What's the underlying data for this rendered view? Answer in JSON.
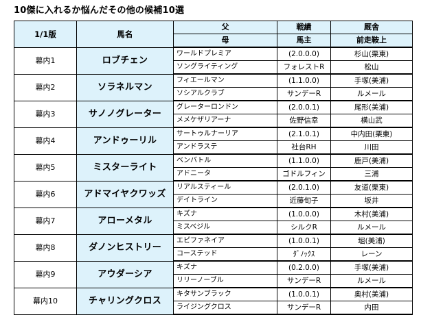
{
  "title": "10傑に入れるか悩んだその他の候補10選",
  "headers": {
    "id": "1/1版",
    "name": "馬名",
    "sire": "父",
    "dam": "母",
    "record": "戦績",
    "owner": "馬主",
    "stable": "厩舎",
    "jockey": "前走鞍上"
  },
  "rows": [
    {
      "id": "幕内1",
      "name": "ロブチェン",
      "sire": "ワールドプレミア",
      "dam": "ソングライティング",
      "record": "(2.0.0.0)",
      "owner": "フォレストR",
      "stable": "杉山(栗東)",
      "jockey": "松山"
    },
    {
      "id": "幕内2",
      "name": "ソラネルマン",
      "sire": "フィエールマン",
      "dam": "ソシアルクラブ",
      "record": "(1.1.0.0)",
      "owner": "サンデーR",
      "stable": "手塚(美浦)",
      "jockey": "ルメール"
    },
    {
      "id": "幕内3",
      "name": "サノノグレーター",
      "sire": "グレーターロンドン",
      "dam": "メメケザリアーナ",
      "record": "(2.0.0.1)",
      "owner": "佐野信幸",
      "stable": "尾形(美浦)",
      "jockey": "横山武"
    },
    {
      "id": "幕内4",
      "name": "アンドゥーリル",
      "sire": "サートゥルナーリア",
      "dam": "アンドラステ",
      "record": "(2.1.0.1)",
      "owner": "社台RH",
      "stable": "中内田(栗東)",
      "jockey": "川田"
    },
    {
      "id": "幕内5",
      "name": "ミスターライト",
      "sire": "ベンバトル",
      "dam": "アドニータ",
      "record": "(1.1.0.0)",
      "owner": "ゴドルフィン",
      "stable": "鹿戸(美浦)",
      "jockey": "三浦"
    },
    {
      "id": "幕内6",
      "name": "アドマイヤクワッズ",
      "sire": "リアルスティール",
      "dam": "デイトライン",
      "record": "(2.0.1.0)",
      "owner": "近藤旬子",
      "stable": "友道(栗東)",
      "jockey": "坂井"
    },
    {
      "id": "幕内7",
      "name": "アローメタル",
      "sire": "キズナ",
      "dam": "ミスベジル",
      "record": "(1.0.0.0)",
      "owner": "シルクR",
      "stable": "木村(美浦)",
      "jockey": "ルメール"
    },
    {
      "id": "幕内8",
      "name": "ダノンヒストリー",
      "sire": "エピファネイア",
      "dam": "コーステッド",
      "record": "(1.0.0.1)",
      "owner": "ﾀﾞﾉｯｸｽ",
      "stable": "堀(美浦)",
      "jockey": "レーン"
    },
    {
      "id": "幕内9",
      "name": "アウダーシア",
      "sire": "キズナ",
      "dam": "リリーノーブル",
      "record": "(0.2.0.0)",
      "owner": "サンデーR",
      "stable": "手塚(美浦)",
      "jockey": "ルメール"
    },
    {
      "id": "幕内10",
      "name": "チャリングクロス",
      "sire": "キタサンブラック",
      "dam": "ライジングクロス",
      "record": "(1.0.0.1)",
      "owner": "サンデーR",
      "stable": "奥村(美浦)",
      "jockey": "内田"
    }
  ],
  "colors": {
    "header_bg": "#ddf2fb",
    "name_bg": "#ddf2fb",
    "border": "#000000"
  }
}
